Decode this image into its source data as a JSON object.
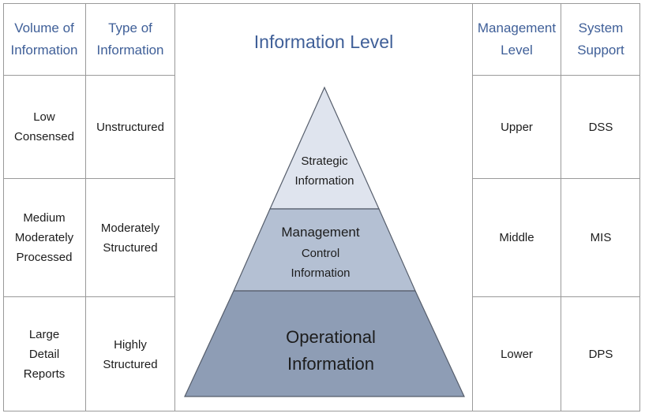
{
  "title": "Information Level",
  "headers": {
    "volume": "Volume of\nInformation",
    "type": "Type of\nInformation",
    "management": "Management\nLevel",
    "system": "System\nSupport"
  },
  "rows": [
    {
      "volume": "Low\nConsensed",
      "type": "Unstructured",
      "management": "Upper",
      "system": "DSS"
    },
    {
      "volume": "Medium\nModerately\nProcessed",
      "type": "Moderately\nStructured",
      "management": "Middle",
      "system": "MIS"
    },
    {
      "volume": "Large\nDetail\nReports",
      "type": "Highly\nStructured",
      "management": "Lower",
      "system": "DPS"
    }
  ],
  "pyramid": {
    "top": [
      "Strategic",
      "Information"
    ],
    "middle": [
      "Management",
      "Control",
      "Information"
    ],
    "bottom": [
      "Operational",
      "Information"
    ]
  },
  "colors": {
    "header_text": "#3f5f98",
    "pyramid_top": "#dfe4ee",
    "pyramid_middle": "#b4c0d3",
    "pyramid_bottom": "#8e9db5",
    "grid": "#9a9a9a"
  }
}
